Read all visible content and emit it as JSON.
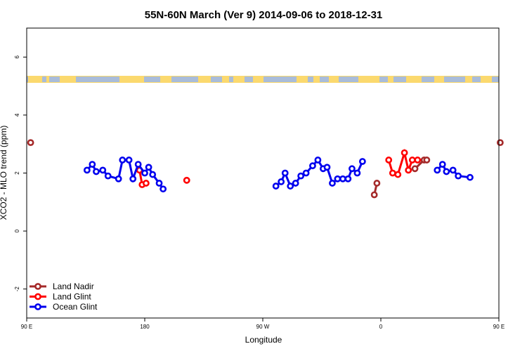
{
  "chart_data": {
    "type": "line",
    "title": "55N-60N March (Ver 9)   2014-09-06 to 2018-12-31",
    "xlabel": "Longitude",
    "ylabel": "XCO2 - MLO trend (ppm)",
    "xlim": [
      90,
      450
    ],
    "ylim": [
      -3,
      7
    ],
    "x_ticks": [
      {
        "value": 90,
        "label": "90 E"
      },
      {
        "value": 180,
        "label": "180"
      },
      {
        "value": 270,
        "label": "90 W"
      },
      {
        "value": 360,
        "label": "0"
      },
      {
        "value": 450,
        "label": "90 E"
      },
      {
        "value": 540,
        "label": "180"
      }
    ],
    "y_ticks": [
      {
        "value": -2,
        "label": "-2"
      },
      {
        "value": 0,
        "label": "0"
      },
      {
        "value": 2,
        "label": "2"
      },
      {
        "value": 4,
        "label": "4"
      },
      {
        "value": 6,
        "label": "6"
      }
    ],
    "legend_position": "bottom-left",
    "series": [
      {
        "name": "Land Nadir",
        "color": "#a52a2a",
        "points": [
          [
            93,
            3.05
          ],
          [
            355,
            1.25
          ],
          [
            357,
            1.65
          ],
          [
            386,
            2.15
          ],
          [
            393,
            2.45
          ],
          [
            395,
            2.45
          ],
          [
            451,
            3.05
          ]
        ]
      },
      {
        "name": "Land Glint",
        "color": "#ff0000",
        "points": [
          [
            176,
            2.1
          ],
          [
            178,
            1.6
          ],
          [
            181,
            1.65
          ],
          [
            212,
            1.75
          ],
          [
            366,
            2.45
          ],
          [
            369,
            2.0
          ],
          [
            373,
            1.95
          ],
          [
            378,
            2.7
          ],
          [
            381,
            2.1
          ],
          [
            384,
            2.45
          ],
          [
            388,
            2.45
          ]
        ]
      },
      {
        "name": "Ocean Glint",
        "color": "#0000ee",
        "points": [
          [
            136,
            2.1
          ],
          [
            140,
            2.3
          ],
          [
            143,
            2.05
          ],
          [
            148,
            2.1
          ],
          [
            152,
            1.9
          ],
          [
            160,
            1.8
          ],
          [
            163,
            2.45
          ],
          [
            168,
            2.45
          ],
          [
            171,
            1.8
          ],
          [
            175,
            2.3
          ],
          [
            180,
            2.0
          ],
          [
            183,
            2.2
          ],
          [
            186,
            1.95
          ],
          [
            191,
            1.65
          ],
          [
            194,
            1.45
          ],
          [
            280,
            1.55
          ],
          [
            284,
            1.7
          ],
          [
            287,
            2.0
          ],
          [
            291,
            1.55
          ],
          [
            295,
            1.65
          ],
          [
            299,
            1.9
          ],
          [
            303,
            2.0
          ],
          [
            308,
            2.25
          ],
          [
            312,
            2.45
          ],
          [
            316,
            2.15
          ],
          [
            319,
            2.2
          ],
          [
            323,
            1.65
          ],
          [
            327,
            1.8
          ],
          [
            331,
            1.8
          ],
          [
            335,
            1.8
          ],
          [
            338,
            2.15
          ],
          [
            342,
            2.0
          ],
          [
            346,
            2.4
          ],
          [
            403,
            2.1
          ],
          [
            407,
            2.3
          ],
          [
            410,
            2.05
          ],
          [
            415,
            2.1
          ],
          [
            419,
            1.9
          ],
          [
            428,
            1.85
          ]
        ]
      }
    ]
  }
}
